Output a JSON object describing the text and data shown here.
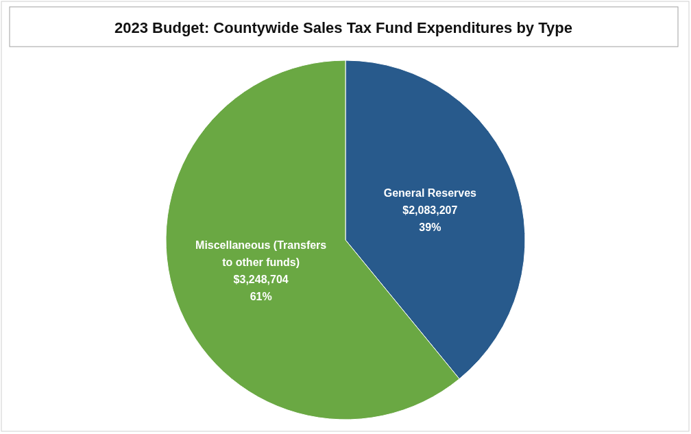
{
  "chart_data": {
    "type": "pie",
    "title": "2023 Budget: Countywide Sales Tax Fund Expenditures by Type",
    "categories": [
      "General Reserves",
      "Miscellaneous (Transfers to other funds)"
    ],
    "values": [
      2083207,
      3248704
    ],
    "colors": [
      "#285a8c",
      "#6aa843"
    ],
    "value_labels": [
      "$2,083,207\n39%",
      "$3,248,704\n61%"
    ],
    "legend": false
  }
}
